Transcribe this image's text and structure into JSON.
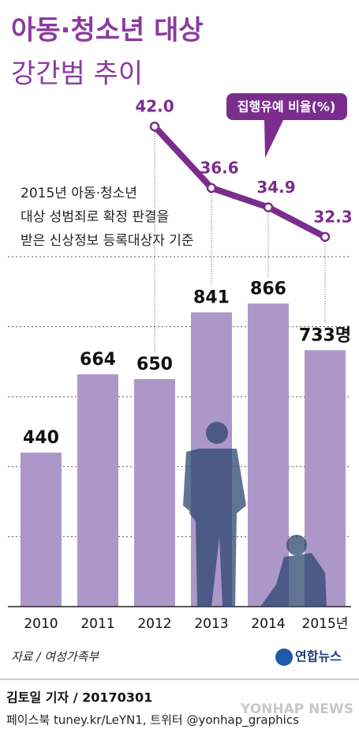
{
  "chart_data": {
    "type": "bar",
    "title": [
      "아동·청소년 대상",
      "강간범 추이"
    ],
    "note": [
      "2015년 아동·청소년",
      "대상 성범죄로 확정 판결을",
      "받은 신상정보 등록대상자 기준"
    ],
    "categories": [
      "2010",
      "2011",
      "2012",
      "2013",
      "2014",
      "2015년"
    ],
    "values": [
      440,
      664,
      650,
      841,
      866,
      733
    ],
    "value_labels": [
      "440",
      "664",
      "650",
      "841",
      "866",
      "733명"
    ],
    "color": "#ad97c9",
    "ylim": [
      0,
      1000
    ],
    "yticks": [
      0,
      200,
      400,
      600,
      800,
      1000
    ],
    "grid": true,
    "series": [
      {
        "name": "집행유예 비율(%)",
        "color": "#7b2d8e",
        "axis": "y2",
        "values": [
          null,
          null,
          42.0,
          36.6,
          34.9,
          32.3
        ],
        "value_labels": [
          null,
          null,
          "42.0",
          "36.6",
          "34.9",
          "32.3"
        ]
      }
    ],
    "y2lim": [
      30,
      45
    ],
    "source": "자료 / 여성가족부",
    "logo": "연합뉴스",
    "byline": "김토일 기자 / 20170301",
    "sns": "페이스북 tuney.kr/LeYN1, 트위터 @yonhap_graphics",
    "watermark": "YONHAP NEWS"
  }
}
